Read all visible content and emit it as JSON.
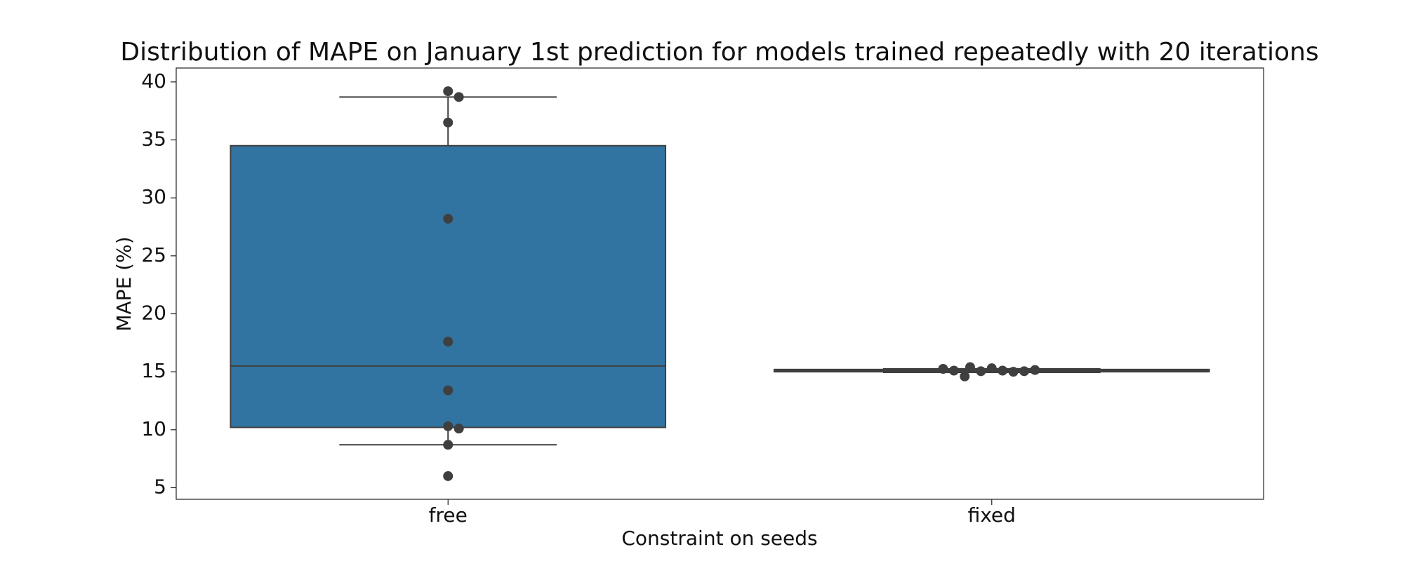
{
  "chart_data": {
    "type": "box",
    "title": "Distribution of MAPE on January 1st prediction for models trained repeatedly with 20 iterations",
    "x_label": "Constraint on seeds",
    "y_label": "MAPE (%)",
    "categories": [
      "free",
      "fixed"
    ],
    "boxes": [
      {
        "whislo": 8.7,
        "q1": 10.2,
        "median": 15.5,
        "q3": 34.5,
        "whishi": 38.7
      },
      {
        "whislo": 14.95,
        "q1": 15.0,
        "median": 15.1,
        "q3": 15.2,
        "whishi": 15.25
      }
    ],
    "points": [
      [
        39.2,
        38.7,
        36.5,
        28.2,
        17.6,
        13.4,
        10.3,
        10.1,
        8.7,
        6.0
      ],
      [
        15.3,
        15.1,
        15.05,
        15.0,
        15.4,
        14.6,
        15.05,
        15.1,
        15.15,
        15.25
      ]
    ],
    "color": "#3274a1",
    "point_color": "#3f3f3f",
    "line_color": "#3f3f3f",
    "ylim": [
      4.0,
      41.2
    ],
    "yticks": [
      5,
      10,
      15,
      20,
      25,
      30,
      35,
      40
    ],
    "grid": false
  }
}
